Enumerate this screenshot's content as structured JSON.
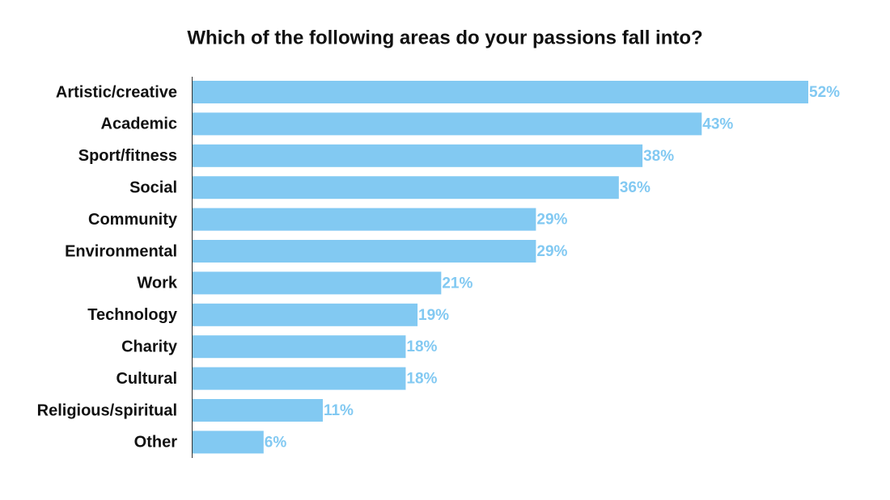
{
  "chart_data": {
    "type": "bar",
    "title": "Which of the following areas do your passions fall into?",
    "categories": [
      "Artistic/creative",
      "Academic",
      "Sport/fitness",
      "Social",
      "Community",
      "Environmental",
      "Work",
      "Technology",
      "Charity",
      "Cultural",
      "Religious/spiritual",
      "Other"
    ],
    "values": [
      52,
      43,
      38,
      36,
      29,
      29,
      21,
      19,
      18,
      18,
      11,
      6
    ],
    "value_labels": [
      "52%",
      "43%",
      "38%",
      "36%",
      "29%",
      "29%",
      "21%",
      "19%",
      "18%",
      "18%",
      "11%",
      "6%"
    ],
    "color": "#82c9f2"
  }
}
